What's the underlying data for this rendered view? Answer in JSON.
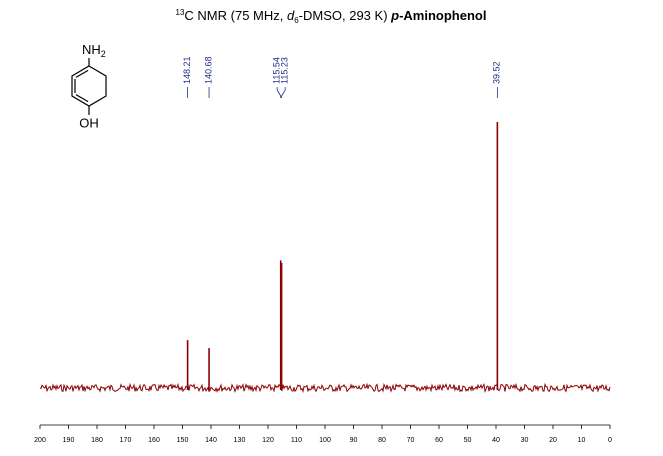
{
  "chart_data": {
    "type": "nmr",
    "title_parts": [
      "13",
      "C NMR (75 MHz, ",
      "d",
      "6",
      "-DMSO, 293 K) ",
      "p",
      "-Aminophenol"
    ],
    "structure": {
      "top": "NH",
      "top_sub": "2",
      "bottom": "OH"
    },
    "x": [
      148.21,
      140.68,
      115.54,
      115.23,
      39.52
    ],
    "values": [
      18,
      15,
      48,
      47,
      100
    ],
    "color": "#8b0000",
    "label_color": "#1f2f8f",
    "xlim": [
      200,
      0
    ],
    "xticks": [
      200,
      190,
      180,
      170,
      160,
      150,
      140,
      130,
      120,
      110,
      100,
      90,
      80,
      70,
      60,
      50,
      40,
      30,
      20,
      10,
      0
    ],
    "ylim": [
      0,
      100
    ]
  }
}
